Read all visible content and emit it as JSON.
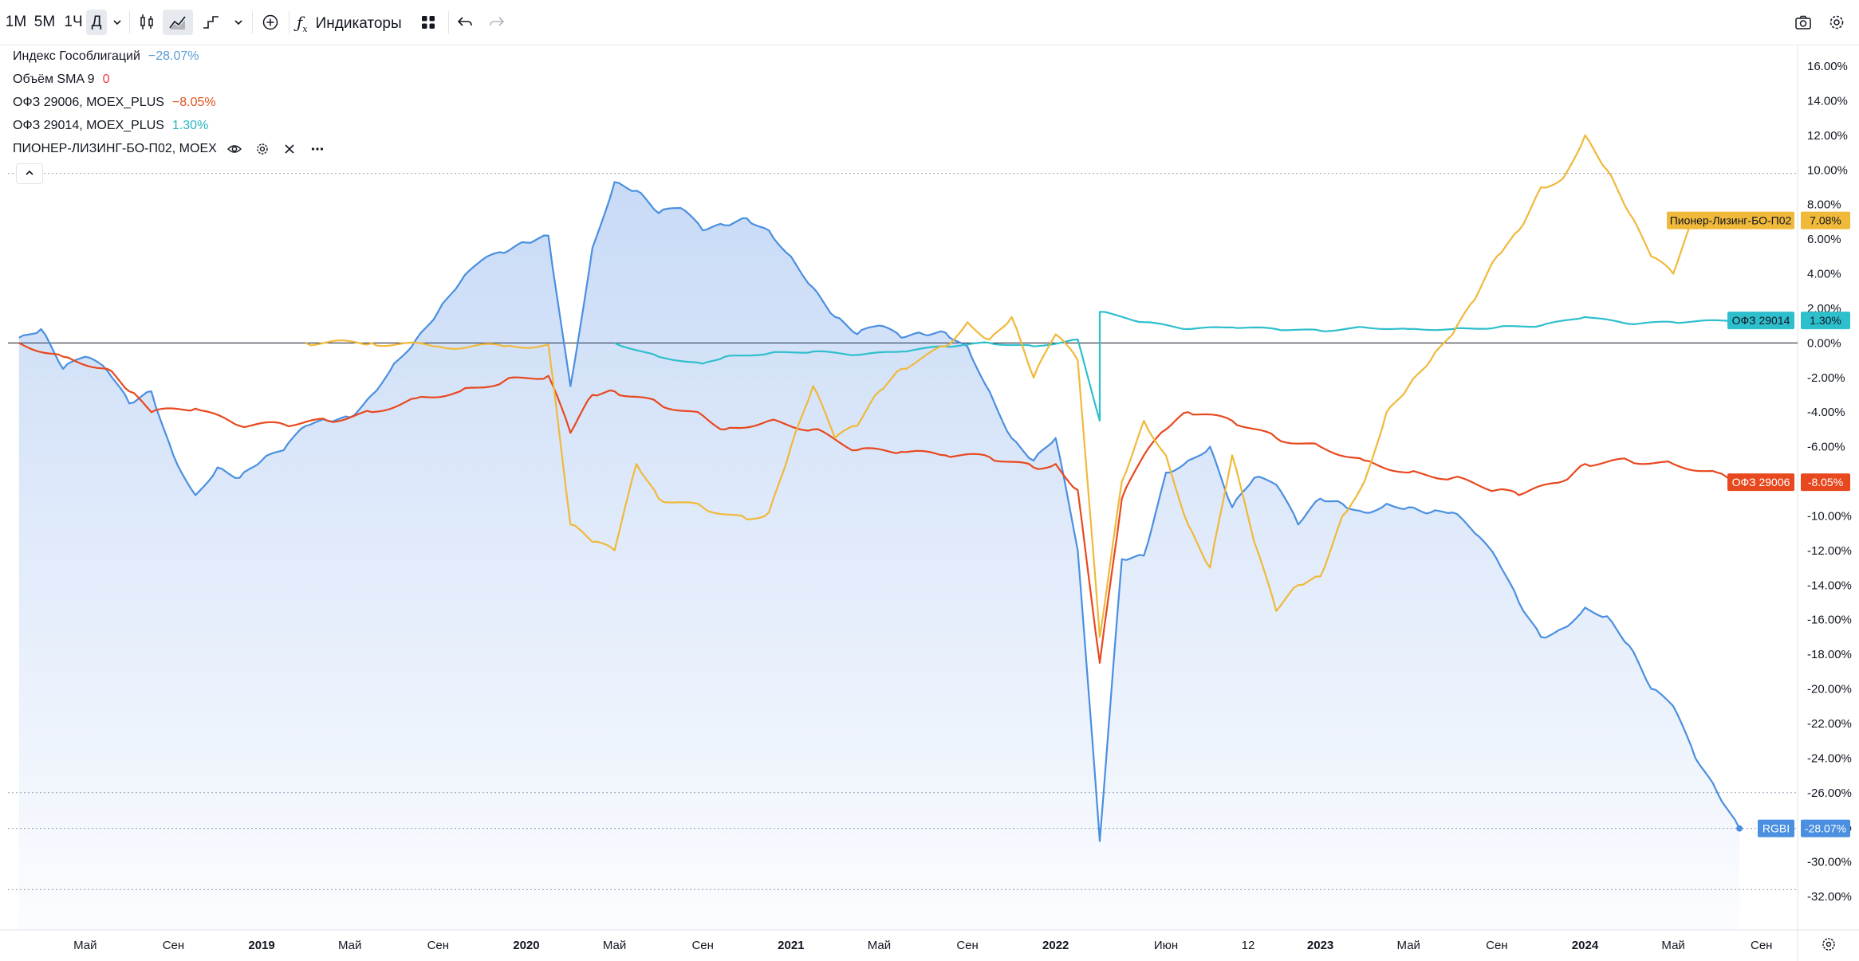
{
  "toolbar": {
    "intervals": [
      "1М",
      "5М",
      "1Ч",
      "Д"
    ],
    "active_interval": "Д",
    "indicators_label": "Индикаторы"
  },
  "legend": [
    {
      "name": "Индекс Гособлигаций",
      "value": "−28.07%",
      "color": "#5b9bd5"
    },
    {
      "name": "Объём SMA 9",
      "value": "0",
      "color": "#f23645"
    },
    {
      "name": "ОФЗ 29006, MOEX_PLUS",
      "value": "−8.05%",
      "color": "#e0531f"
    },
    {
      "name": "ОФЗ 29014, MOEX_PLUS",
      "value": "1.30%",
      "color": "#26b5c4"
    },
    {
      "name": "ПИОНЕР-ЛИЗИНГ-БО-П02, MOEX",
      "value": "",
      "color": "#f2b135"
    }
  ],
  "colors": {
    "rgbi": "#4a8fe0",
    "ofz29006": "#e8481e",
    "ofz29014": "#2ebfcc",
    "pioneer": "#f0b93a"
  },
  "chart_data": {
    "type": "line",
    "x_axis_labels": [
      "Май",
      "Сен",
      "2019",
      "Май",
      "Сен",
      "2020",
      "Май",
      "Сен",
      "2021",
      "Май",
      "Сен",
      "2022",
      "Июн",
      "12",
      "2023",
      "Май",
      "Сен",
      "2024",
      "Май",
      "Сен"
    ],
    "y_tick_labels": [
      "16.00%",
      "14.00%",
      "12.00%",
      "10.00%",
      "8.00%",
      "6.00%",
      "4.00%",
      "2.00%",
      "0.00%",
      "-2.00%",
      "-4.00%",
      "-6.00%",
      "-8.00%",
      "-10.00%",
      "-12.00%",
      "-14.00%",
      "-16.00%",
      "-18.00%",
      "-20.00%",
      "-22.00%",
      "-24.00%",
      "-26.00%",
      "-28.00%",
      "-30.00%",
      "-32.00%"
    ],
    "ylim": [
      -32,
      16
    ],
    "x_range": [
      "2018-02",
      "2024-10"
    ],
    "series": [
      {
        "name": "RGBI",
        "last_label": "-28.07%",
        "points": [
          [
            "2018-02",
            0.3
          ],
          [
            "2018-03",
            0.8
          ],
          [
            "2018-04",
            -1.5
          ],
          [
            "2018-05",
            -0.8
          ],
          [
            "2018-06",
            -1.6
          ],
          [
            "2018-07",
            -3.5
          ],
          [
            "2018-08",
            -2.8
          ],
          [
            "2018-09",
            -6.5
          ],
          [
            "2018-10",
            -8.8
          ],
          [
            "2018-11",
            -7.2
          ],
          [
            "2018-12",
            -7.8
          ],
          [
            "2019-01",
            -6.8
          ],
          [
            "2019-02",
            -6.2
          ],
          [
            "2019-03",
            -4.8
          ],
          [
            "2019-04",
            -4.5
          ],
          [
            "2019-05",
            -4.3
          ],
          [
            "2019-06",
            -3.0
          ],
          [
            "2019-07",
            -1.2
          ],
          [
            "2019-08",
            0.2
          ],
          [
            "2019-09",
            1.8
          ],
          [
            "2019-10",
            3.5
          ],
          [
            "2019-11",
            4.8
          ],
          [
            "2019-12",
            5.2
          ],
          [
            "2020-01",
            5.8
          ],
          [
            "2020-02",
            6.2
          ],
          [
            "2020-03",
            -2.5
          ],
          [
            "2020-04",
            5.5
          ],
          [
            "2020-05",
            9.3
          ],
          [
            "2020-06",
            8.8
          ],
          [
            "2020-07",
            7.5
          ],
          [
            "2020-08",
            7.8
          ],
          [
            "2020-09",
            6.5
          ],
          [
            "2020-10",
            6.8
          ],
          [
            "2020-11",
            7.2
          ],
          [
            "2020-12",
            6.5
          ],
          [
            "2021-01",
            5.0
          ],
          [
            "2021-02",
            3.2
          ],
          [
            "2021-03",
            1.5
          ],
          [
            "2021-04",
            0.5
          ],
          [
            "2021-05",
            1.0
          ],
          [
            "2021-06",
            0.3
          ],
          [
            "2021-07",
            0.5
          ],
          [
            "2021-08",
            0.6
          ],
          [
            "2021-09",
            -0.2
          ],
          [
            "2021-10",
            -2.8
          ],
          [
            "2021-11",
            -5.5
          ],
          [
            "2021-12",
            -6.8
          ],
          [
            "2022-01",
            -5.5
          ],
          [
            "2022-02",
            -12.0
          ],
          [
            "2022-03",
            -28.8
          ],
          [
            "2022-04",
            -12.5
          ],
          [
            "2022-05",
            -12.3
          ],
          [
            "2022-06",
            -7.5
          ],
          [
            "2022-07",
            -6.8
          ],
          [
            "2022-08",
            -6.0
          ],
          [
            "2022-09",
            -9.5
          ],
          [
            "2022-10",
            -7.8
          ],
          [
            "2022-11",
            -8.2
          ],
          [
            "2022-12",
            -10.5
          ],
          [
            "2023-01",
            -9.0
          ],
          [
            "2023-02",
            -9.3
          ],
          [
            "2023-03",
            -9.8
          ],
          [
            "2023-04",
            -9.3
          ],
          [
            "2023-05",
            -9.5
          ],
          [
            "2023-06",
            -9.8
          ],
          [
            "2023-07",
            -9.8
          ],
          [
            "2023-08",
            -11.0
          ],
          [
            "2023-09",
            -12.5
          ],
          [
            "2023-10",
            -15.0
          ],
          [
            "2023-11",
            -17.0
          ],
          [
            "2023-12",
            -16.5
          ],
          [
            "2024-01",
            -15.3
          ],
          [
            "2024-02",
            -15.8
          ],
          [
            "2024-03",
            -17.5
          ],
          [
            "2024-04",
            -20.0
          ],
          [
            "2024-05",
            -21.0
          ],
          [
            "2024-06",
            -24.0
          ],
          [
            "2024-07",
            -26.0
          ],
          [
            "2024-08",
            -28.07
          ]
        ]
      },
      {
        "name": "ОФЗ 29006",
        "last_label": "-8.05%",
        "points": [
          [
            "2018-02",
            0.0
          ],
          [
            "2018-04",
            -0.8
          ],
          [
            "2018-06",
            -1.5
          ],
          [
            "2018-07",
            -2.8
          ],
          [
            "2018-08",
            -4.0
          ],
          [
            "2018-10",
            -3.8
          ],
          [
            "2018-12",
            -4.8
          ],
          [
            "2019-02",
            -4.7
          ],
          [
            "2019-04",
            -4.5
          ],
          [
            "2019-06",
            -4.0
          ],
          [
            "2019-08",
            -3.2
          ],
          [
            "2019-10",
            -2.8
          ],
          [
            "2019-12",
            -2.2
          ],
          [
            "2020-02",
            -1.9
          ],
          [
            "2020-03",
            -5.2
          ],
          [
            "2020-04",
            -3.0
          ],
          [
            "2020-05",
            -2.8
          ],
          [
            "2020-07",
            -3.5
          ],
          [
            "2020-09",
            -4.2
          ],
          [
            "2020-10",
            -5.0
          ],
          [
            "2020-12",
            -4.5
          ],
          [
            "2021-02",
            -5.0
          ],
          [
            "2021-04",
            -6.2
          ],
          [
            "2021-06",
            -6.3
          ],
          [
            "2021-08",
            -6.5
          ],
          [
            "2021-10",
            -6.6
          ],
          [
            "2021-12",
            -7.2
          ],
          [
            "2022-01",
            -7.0
          ],
          [
            "2022-02",
            -8.5
          ],
          [
            "2022-03",
            -18.5
          ],
          [
            "2022-04",
            -9.0
          ],
          [
            "2022-05",
            -6.5
          ],
          [
            "2022-06",
            -5.0
          ],
          [
            "2022-07",
            -4.0
          ],
          [
            "2022-09",
            -4.5
          ],
          [
            "2022-11",
            -5.5
          ],
          [
            "2023-01",
            -6.0
          ],
          [
            "2023-03",
            -6.8
          ],
          [
            "2023-05",
            -7.5
          ],
          [
            "2023-07",
            -7.8
          ],
          [
            "2023-09",
            -8.5
          ],
          [
            "2023-10",
            -8.8
          ],
          [
            "2023-12",
            -8.0
          ],
          [
            "2024-01",
            -7.0
          ],
          [
            "2024-03",
            -6.8
          ],
          [
            "2024-05",
            -7.0
          ],
          [
            "2024-07",
            -7.5
          ],
          [
            "2024-08",
            -8.05
          ]
        ]
      },
      {
        "name": "ОФЗ 29014",
        "last_label": "1.30%",
        "points": [
          [
            "2020-05",
            0.0
          ],
          [
            "2020-07",
            -0.8
          ],
          [
            "2020-09",
            -1.2
          ],
          [
            "2020-10",
            -0.8
          ],
          [
            "2020-12",
            -0.6
          ],
          [
            "2021-02",
            -0.5
          ],
          [
            "2021-04",
            -0.7
          ],
          [
            "2021-06",
            -0.5
          ],
          [
            "2021-08",
            -0.2
          ],
          [
            "2021-10",
            0.0
          ],
          [
            "2021-12",
            -0.2
          ],
          [
            "2022-02",
            0.2
          ],
          [
            "2022-03",
            -4.5
          ],
          [
            "2022-03",
            1.8
          ],
          [
            "2022-05",
            1.2
          ],
          [
            "2022-07",
            0.8
          ],
          [
            "2022-09",
            0.9
          ],
          [
            "2022-11",
            0.8
          ],
          [
            "2023-01",
            0.7
          ],
          [
            "2023-03",
            0.9
          ],
          [
            "2023-05",
            0.8
          ],
          [
            "2023-07",
            0.8
          ],
          [
            "2023-09",
            0.9
          ],
          [
            "2023-11",
            1.0
          ],
          [
            "2024-01",
            1.5
          ],
          [
            "2024-03",
            1.1
          ],
          [
            "2024-05",
            1.2
          ],
          [
            "2024-08",
            1.3
          ]
        ]
      },
      {
        "name": "Пионер-Лизинг-БО-П02",
        "last_label": "7.08%",
        "points": [
          [
            "2019-03",
            0.0
          ],
          [
            "2019-06",
            0.0
          ],
          [
            "2019-09",
            -0.2
          ],
          [
            "2019-12",
            -0.2
          ],
          [
            "2020-02",
            -0.1
          ],
          [
            "2020-03",
            -10.5
          ],
          [
            "2020-04",
            -11.5
          ],
          [
            "2020-05",
            -12.0
          ],
          [
            "2020-06",
            -7.0
          ],
          [
            "2020-07",
            -9.0
          ],
          [
            "2020-09",
            -9.5
          ],
          [
            "2020-11",
            -10.2
          ],
          [
            "2020-12",
            -9.8
          ],
          [
            "2021-01",
            -6.0
          ],
          [
            "2021-02",
            -2.5
          ],
          [
            "2021-03",
            -5.5
          ],
          [
            "2021-04",
            -4.8
          ],
          [
            "2021-05",
            -2.8
          ],
          [
            "2021-06",
            -1.5
          ],
          [
            "2021-08",
            -0.2
          ],
          [
            "2021-09",
            1.2
          ],
          [
            "2021-10",
            0.2
          ],
          [
            "2021-11",
            1.5
          ],
          [
            "2021-12",
            -2.0
          ],
          [
            "2022-01",
            0.5
          ],
          [
            "2022-02",
            -1.0
          ],
          [
            "2022-03",
            -17.0
          ],
          [
            "2022-04",
            -8.0
          ],
          [
            "2022-05",
            -4.5
          ],
          [
            "2022-06",
            -6.5
          ],
          [
            "2022-07",
            -10.5
          ],
          [
            "2022-08",
            -13.0
          ],
          [
            "2022-09",
            -6.5
          ],
          [
            "2022-10",
            -11.5
          ],
          [
            "2022-11",
            -15.5
          ],
          [
            "2022-12",
            -14.0
          ],
          [
            "2023-01",
            -13.5
          ],
          [
            "2023-02",
            -10.0
          ],
          [
            "2023-03",
            -8.0
          ],
          [
            "2023-04",
            -4.0
          ],
          [
            "2023-05",
            -2.5
          ],
          [
            "2023-06",
            -1.0
          ],
          [
            "2023-07",
            0.5
          ],
          [
            "2023-08",
            2.5
          ],
          [
            "2023-09",
            5.0
          ],
          [
            "2023-10",
            6.5
          ],
          [
            "2023-11",
            9.0
          ],
          [
            "2023-12",
            9.5
          ],
          [
            "2024-01",
            12.0
          ],
          [
            "2024-02",
            10.0
          ],
          [
            "2024-03",
            7.5
          ],
          [
            "2024-04",
            5.0
          ],
          [
            "2024-05",
            4.0
          ],
          [
            "2024-06",
            7.5
          ],
          [
            "2024-07",
            6.8
          ],
          [
            "2024-08",
            7.08
          ]
        ]
      }
    ],
    "reference_lines": [
      9.8,
      0.0,
      -26.0,
      -28.07,
      -31.6
    ]
  },
  "price_tags": {
    "pioneer": "Пионер-Лизинг-БО-П02",
    "pioneer_value": "7.08%",
    "ofz29014": "ОФЗ 29014",
    "ofz29014_value": "1.30%",
    "ofz29006": "ОФЗ 29006",
    "ofz29006_value": "-8.05%",
    "rgbi": "RGBI",
    "rgbi_value": "-28.07%"
  }
}
